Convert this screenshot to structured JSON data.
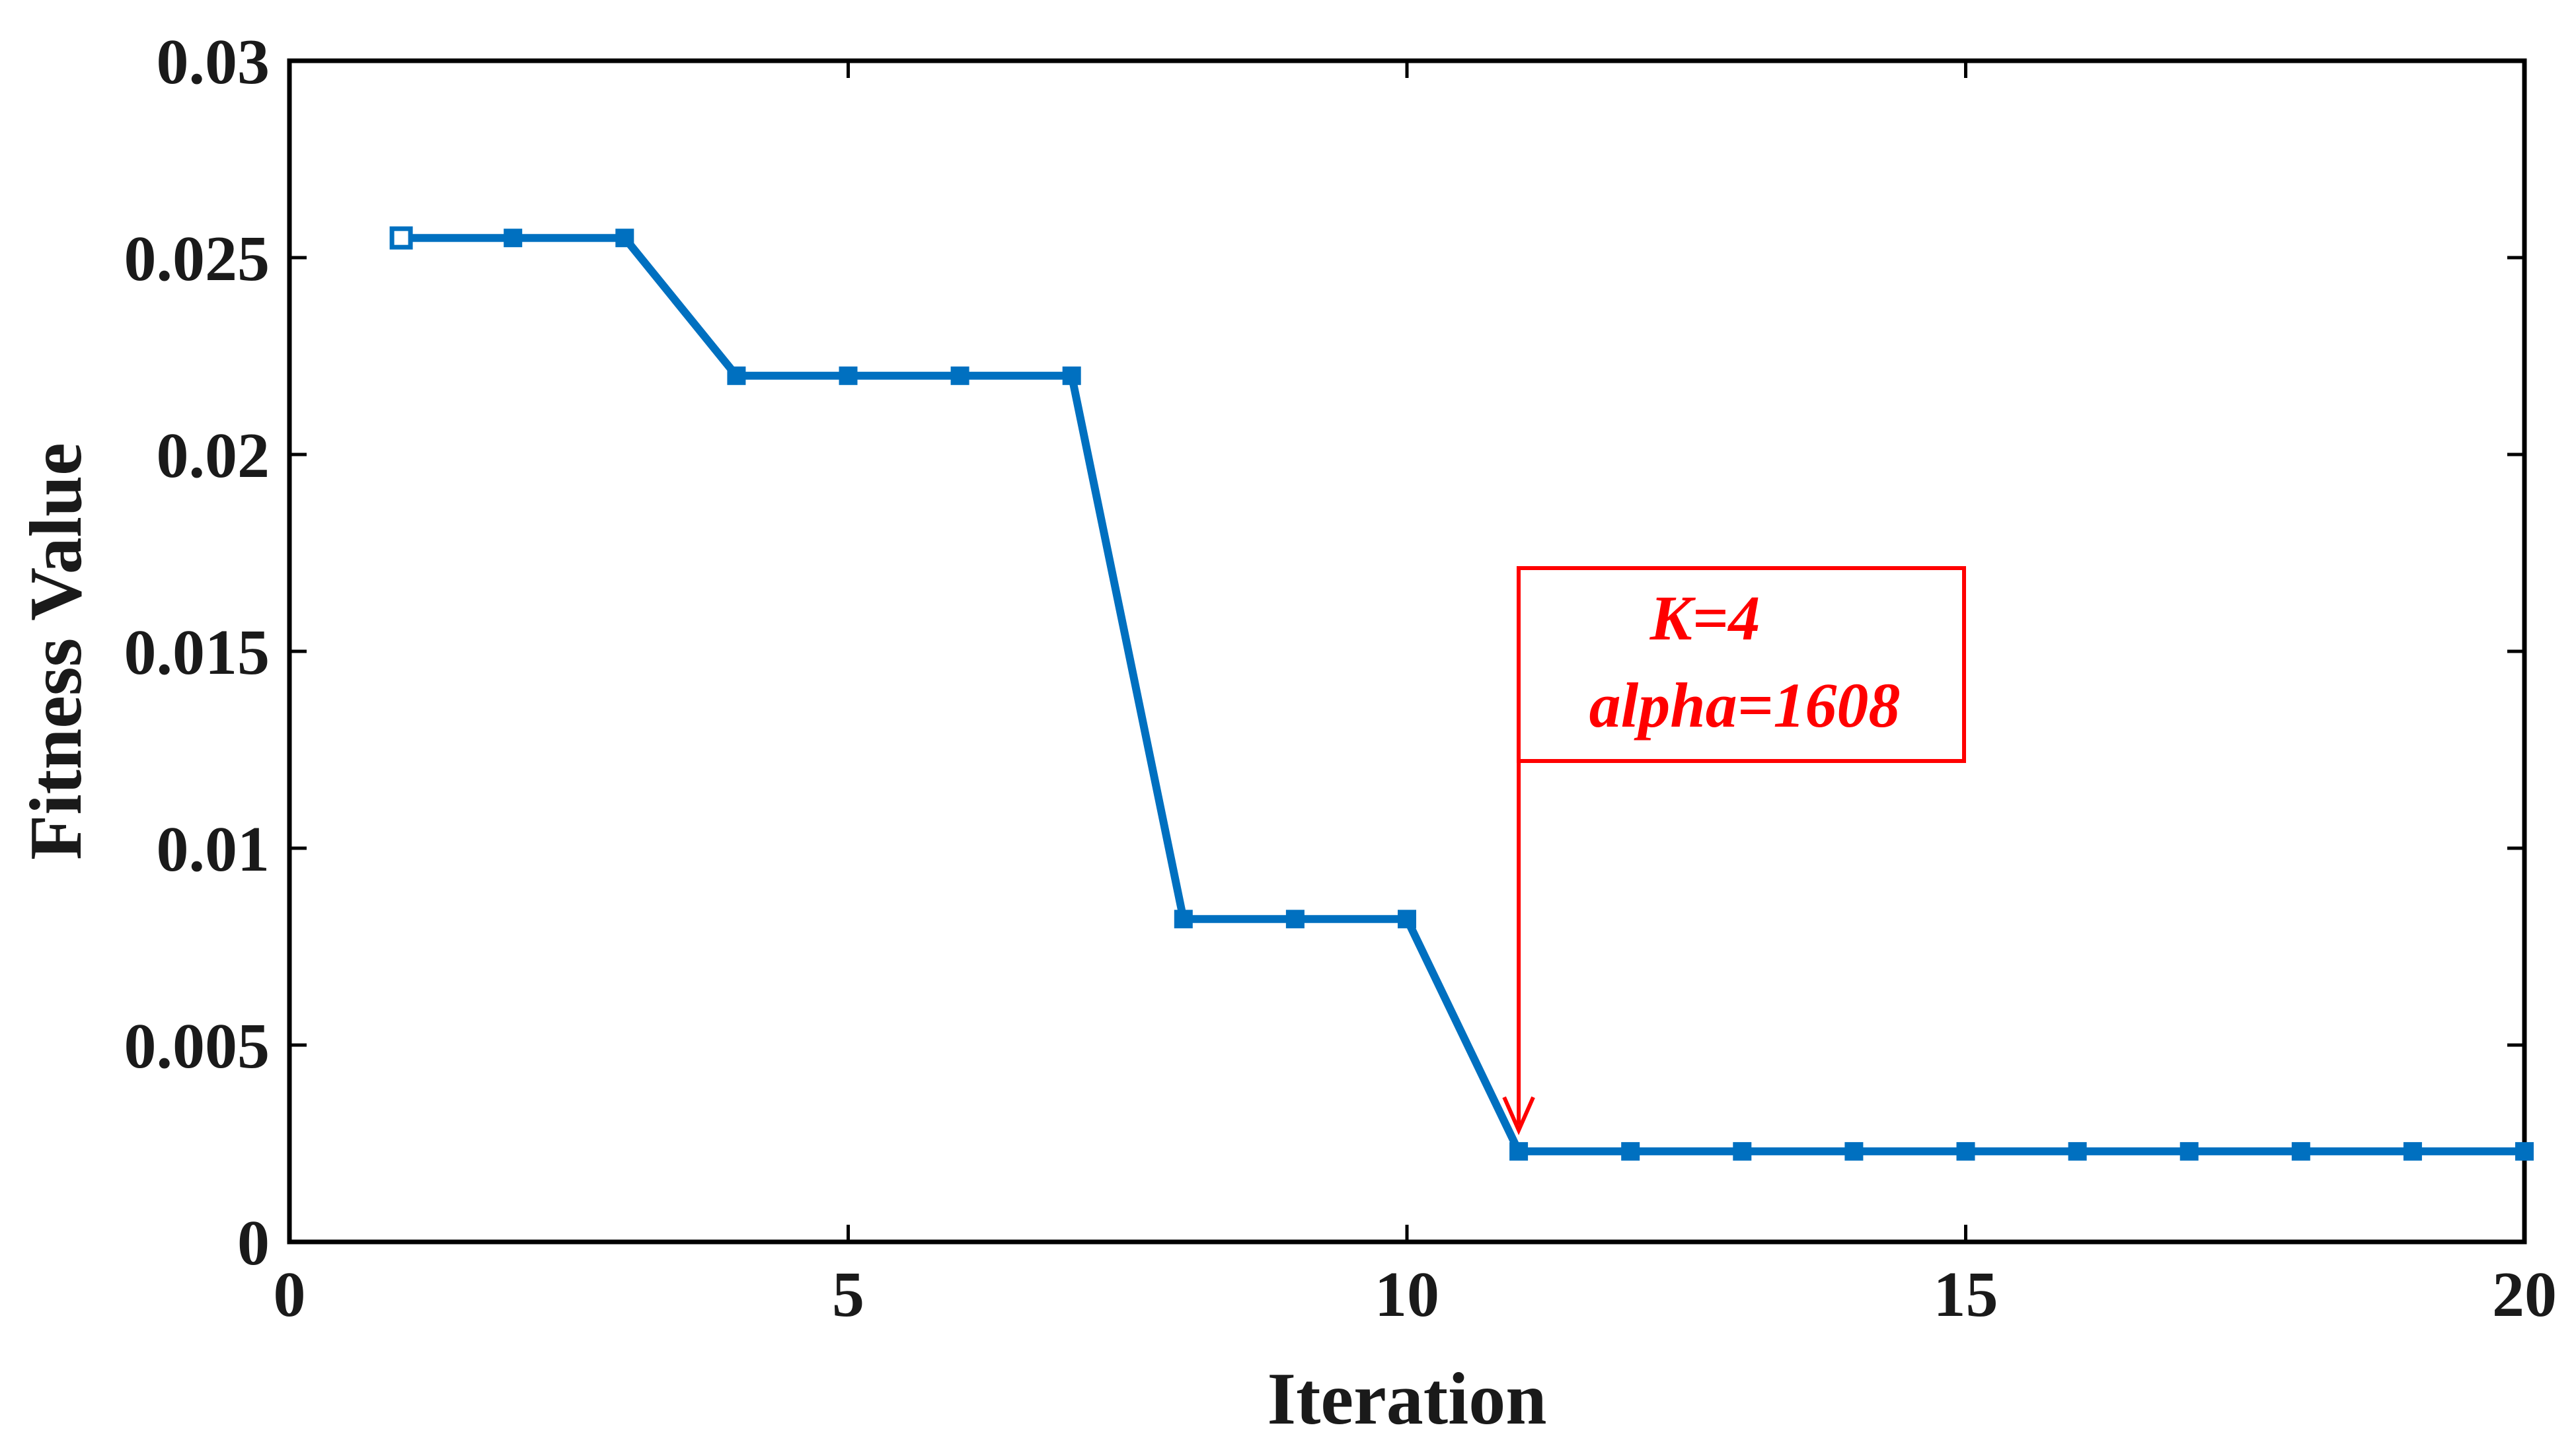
{
  "chart_data": {
    "type": "line",
    "xlabel": "Iteration",
    "ylabel": "Fitness Value",
    "xlim": [
      0,
      20
    ],
    "ylim": [
      0,
      0.03
    ],
    "xticks": [
      0,
      5,
      10,
      15,
      20
    ],
    "xtick_labels": [
      "0",
      "5",
      "10",
      "15",
      "20"
    ],
    "yticks": [
      0,
      0.005,
      0.01,
      0.015,
      0.02,
      0.025,
      0.03
    ],
    "ytick_labels": [
      "0",
      "0.005",
      "0.01",
      "0.015",
      "0.02",
      "0.025",
      "0.03"
    ],
    "grid": false,
    "series": [
      {
        "color": "#0070C0",
        "marker": "square",
        "x": [
          1,
          2,
          3,
          4,
          5,
          6,
          7,
          8,
          9,
          10,
          11,
          12,
          13,
          14,
          15,
          16,
          17,
          18,
          19,
          20
        ],
        "values": [
          0.0255,
          0.0255,
          0.0255,
          0.022,
          0.022,
          0.022,
          0.022,
          0.0082,
          0.0082,
          0.0082,
          0.0023,
          0.0023,
          0.0023,
          0.0023,
          0.0023,
          0.0023,
          0.0023,
          0.0023,
          0.0023,
          0.0023
        ]
      }
    ],
    "annotation": {
      "lines": [
        "K=4",
        "alpha=1608"
      ],
      "color": "#FF0000",
      "points_to": {
        "x": 11,
        "y": 0.0023
      }
    }
  }
}
